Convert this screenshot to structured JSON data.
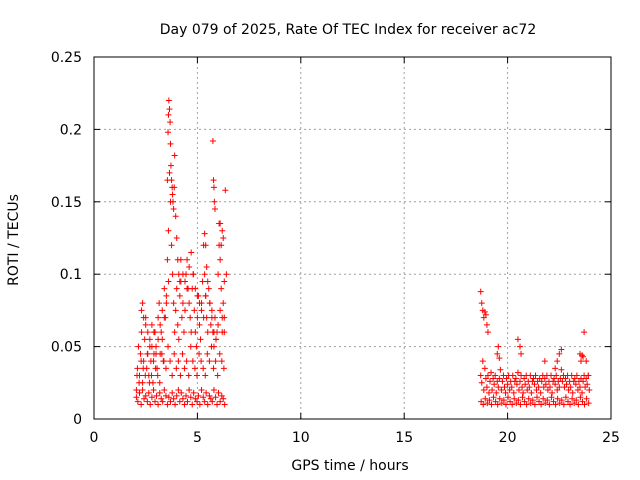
{
  "chart_data": {
    "type": "scatter",
    "title": "Day 079 of 2025, Rate Of TEC Index for receiver ac72",
    "xlabel": "GPS time / hours",
    "ylabel": "ROTI / TECUs",
    "xlim": [
      0,
      25
    ],
    "ylim": [
      0,
      0.25
    ],
    "xticks": [
      0,
      5,
      10,
      15,
      20,
      25
    ],
    "xtick_labels": [
      "0",
      "5",
      "10",
      "15",
      "20",
      "25"
    ],
    "yticks": [
      0,
      0.05,
      0.1,
      0.15,
      0.2,
      0.25
    ],
    "ytick_labels": [
      "0",
      "0.05",
      "0.1",
      "0.15",
      "0.2",
      "0.25"
    ],
    "grid": true,
    "marker": "plus",
    "color": "#ff0000",
    "series": [
      {
        "x": [
          2.05,
          2.1,
          2.15,
          2.2,
          2.25,
          2.3,
          2.35,
          2.4,
          2.45,
          2.5,
          2.55,
          2.6,
          2.65,
          2.7,
          2.75,
          2.8,
          2.85,
          2.9,
          2.95,
          3.0,
          3.05,
          3.1,
          3.15,
          3.2,
          3.25,
          3.3,
          3.35,
          3.4,
          3.45,
          3.5,
          3.55,
          3.6,
          3.65,
          3.7,
          3.75,
          3.8,
          3.85,
          3.9,
          3.95,
          4.0,
          4.05,
          4.1,
          4.15,
          4.2,
          4.25,
          4.3,
          4.35,
          4.4,
          4.45,
          4.5,
          4.55,
          4.6,
          4.65,
          4.7,
          4.75,
          4.8,
          4.85,
          4.9,
          4.95,
          5.0,
          5.05,
          5.1,
          5.15,
          5.2,
          5.25,
          5.3,
          5.35,
          5.4,
          5.45,
          5.5,
          5.55,
          5.6,
          5.65,
          5.7,
          5.75,
          5.8,
          5.85,
          5.9,
          5.95,
          6.0,
          6.05,
          6.1,
          6.15,
          6.2,
          6.25,
          6.3,
          2.05,
          2.12,
          2.2,
          2.28,
          2.35,
          2.42,
          2.5,
          2.58,
          2.65,
          2.72,
          2.8,
          2.88,
          2.95,
          3.02,
          3.1,
          3.18,
          3.25,
          3.32,
          3.4,
          3.48,
          3.55,
          3.62,
          3.7,
          3.78,
          3.85,
          3.92,
          4.0,
          4.08,
          4.15,
          4.22,
          4.3,
          4.38,
          4.45,
          4.52,
          4.6,
          4.68,
          4.75,
          4.82,
          4.9,
          4.98,
          5.05,
          5.12,
          5.2,
          5.28,
          5.35,
          5.42,
          5.5,
          5.58,
          5.65,
          5.72,
          5.8,
          5.88,
          5.95,
          6.02,
          6.1,
          6.18,
          6.25,
          6.32,
          2.08,
          2.18,
          2.28,
          2.38,
          2.48,
          2.58,
          2.68,
          2.78,
          2.88,
          2.98,
          3.08,
          3.18,
          3.28,
          3.38,
          3.48,
          3.58,
          3.68,
          3.78,
          3.88,
          3.98,
          4.08,
          4.18,
          4.28,
          4.38,
          4.48,
          4.58,
          4.68,
          4.78,
          4.88,
          4.98,
          5.08,
          5.18,
          5.28,
          5.38,
          5.48,
          5.58,
          5.68,
          5.78,
          5.88,
          5.98,
          6.08,
          6.18,
          6.28,
          3.55,
          3.58,
          3.6,
          3.62,
          3.65,
          3.68,
          3.7,
          3.72,
          3.75,
          3.78,
          3.8,
          3.82,
          3.85,
          3.88,
          3.9,
          3.95,
          4.0,
          4.05,
          4.1,
          4.15,
          2.3,
          2.35,
          2.4,
          2.5,
          2.6,
          2.7,
          2.8,
          2.9,
          3.0,
          3.1,
          3.2,
          3.3,
          3.4,
          3.5,
          3.6,
          4.2,
          4.3,
          4.4,
          4.5,
          4.6,
          4.7,
          4.8,
          4.9,
          5.0,
          5.1,
          5.2,
          5.3,
          5.4,
          5.5,
          5.6,
          5.7,
          5.8,
          5.9,
          6.0,
          6.1,
          6.2,
          6.3,
          5.75,
          5.78,
          5.8,
          5.82,
          5.85,
          6.4,
          6.35,
          6.3,
          6.25,
          6.2,
          5.35,
          5.4,
          5.45,
          6.15,
          6.1,
          6.05
        ],
        "y": [
          0.02,
          0.035,
          0.05,
          0.03,
          0.045,
          0.06,
          0.025,
          0.04,
          0.055,
          0.07,
          0.035,
          0.045,
          0.03,
          0.05,
          0.04,
          0.065,
          0.025,
          0.045,
          0.06,
          0.05,
          0.035,
          0.07,
          0.08,
          0.045,
          0.06,
          0.055,
          0.04,
          0.09,
          0.07,
          0.085,
          0.11,
          0.13,
          0.17,
          0.15,
          0.12,
          0.1,
          0.08,
          0.06,
          0.075,
          0.09,
          0.065,
          0.055,
          0.085,
          0.095,
          0.07,
          0.08,
          0.06,
          0.075,
          0.1,
          0.11,
          0.09,
          0.08,
          0.07,
          0.06,
          0.09,
          0.1,
          0.075,
          0.06,
          0.05,
          0.07,
          0.085,
          0.065,
          0.055,
          0.08,
          0.095,
          0.12,
          0.1,
          0.085,
          0.07,
          0.06,
          0.09,
          0.08,
          0.065,
          0.075,
          0.06,
          0.05,
          0.07,
          0.055,
          0.06,
          0.1,
          0.12,
          0.135,
          0.09,
          0.07,
          0.08,
          0.06,
          0.015,
          0.012,
          0.018,
          0.01,
          0.02,
          0.014,
          0.016,
          0.012,
          0.018,
          0.01,
          0.015,
          0.02,
          0.012,
          0.016,
          0.01,
          0.018,
          0.014,
          0.012,
          0.02,
          0.016,
          0.01,
          0.015,
          0.012,
          0.018,
          0.014,
          0.01,
          0.016,
          0.02,
          0.012,
          0.018,
          0.014,
          0.01,
          0.016,
          0.012,
          0.02,
          0.015,
          0.01,
          0.018,
          0.014,
          0.012,
          0.016,
          0.01,
          0.02,
          0.015,
          0.012,
          0.018,
          0.01,
          0.016,
          0.014,
          0.012,
          0.02,
          0.015,
          0.01,
          0.018,
          0.012,
          0.016,
          0.014,
          0.01,
          0.03,
          0.025,
          0.04,
          0.035,
          0.03,
          0.045,
          0.025,
          0.03,
          0.04,
          0.035,
          0.03,
          0.025,
          0.045,
          0.04,
          0.035,
          0.05,
          0.04,
          0.03,
          0.045,
          0.035,
          0.04,
          0.03,
          0.045,
          0.035,
          0.04,
          0.03,
          0.05,
          0.04,
          0.035,
          0.03,
          0.045,
          0.04,
          0.035,
          0.03,
          0.045,
          0.04,
          0.05,
          0.035,
          0.04,
          0.03,
          0.045,
          0.04,
          0.035,
          0.165,
          0.198,
          0.21,
          0.22,
          0.214,
          0.205,
          0.19,
          0.175,
          0.165,
          0.16,
          0.155,
          0.15,
          0.145,
          0.16,
          0.182,
          0.14,
          0.125,
          0.11,
          0.1,
          0.095,
          0.075,
          0.08,
          0.07,
          0.065,
          0.06,
          0.055,
          0.05,
          0.06,
          0.045,
          0.055,
          0.065,
          0.075,
          0.07,
          0.08,
          0.095,
          0.11,
          0.1,
          0.095,
          0.09,
          0.105,
          0.115,
          0.1,
          0.09,
          0.085,
          0.08,
          0.075,
          0.07,
          0.085,
          0.095,
          0.08,
          0.07,
          0.06,
          0.055,
          0.065,
          0.075,
          0.06,
          0.07,
          0.192,
          0.165,
          0.16,
          0.15,
          0.145,
          0.1,
          0.158,
          0.095,
          0.125,
          0.13,
          0.128,
          0.12,
          0.105,
          0.12,
          0.11,
          0.135
        ]
      },
      {
        "x": [
          18.7,
          18.75,
          18.8,
          18.85,
          18.9,
          18.95,
          19.0,
          19.05,
          19.1,
          19.15,
          19.2,
          19.25,
          19.3,
          19.35,
          19.4,
          19.45,
          19.5,
          19.55,
          19.6,
          19.65,
          19.7,
          19.75,
          19.8,
          19.85,
          19.9,
          19.95,
          20.0,
          20.05,
          20.1,
          20.15,
          20.2,
          20.25,
          20.3,
          20.35,
          20.4,
          20.45,
          20.5,
          20.55,
          20.6,
          20.65,
          20.7,
          20.75,
          20.8,
          20.85,
          20.9,
          20.95,
          21.0,
          21.05,
          21.1,
          21.15,
          21.2,
          21.25,
          21.3,
          21.35,
          21.4,
          21.45,
          21.5,
          21.55,
          21.6,
          21.65,
          21.7,
          21.75,
          21.8,
          21.85,
          21.9,
          21.95,
          22.0,
          22.05,
          22.1,
          22.15,
          22.2,
          22.25,
          22.3,
          22.35,
          22.4,
          22.45,
          22.5,
          22.55,
          22.6,
          22.65,
          22.7,
          22.75,
          22.8,
          22.85,
          22.9,
          22.95,
          23.0,
          23.05,
          23.1,
          23.15,
          23.2,
          23.25,
          23.3,
          23.35,
          23.4,
          23.45,
          23.5,
          23.55,
          23.6,
          23.65,
          23.7,
          23.75,
          23.8,
          23.85,
          23.9,
          23.95,
          18.72,
          18.82,
          18.92,
          19.02,
          19.12,
          19.22,
          19.32,
          19.42,
          19.52,
          19.62,
          19.72,
          19.82,
          19.92,
          20.02,
          20.12,
          20.22,
          20.32,
          20.42,
          20.52,
          20.62,
          20.72,
          20.82,
          20.92,
          21.02,
          21.12,
          21.22,
          21.32,
          21.42,
          21.52,
          21.62,
          21.72,
          21.82,
          21.92,
          22.02,
          22.12,
          22.22,
          22.32,
          22.42,
          22.52,
          22.62,
          22.72,
          22.82,
          22.92,
          23.02,
          23.12,
          23.22,
          23.32,
          23.42,
          23.52,
          23.62,
          23.72,
          23.82,
          23.92,
          18.7,
          18.75,
          18.8,
          18.85,
          18.9,
          18.95,
          19.0,
          19.05,
          19.5,
          19.55,
          19.6,
          20.5,
          20.6,
          20.65,
          21.8,
          22.3,
          22.4,
          22.5,
          22.6,
          23.5,
          23.55,
          23.6,
          23.65,
          23.7,
          23.8,
          23.9
        ],
        "y": [
          0.03,
          0.025,
          0.04,
          0.02,
          0.035,
          0.028,
          0.022,
          0.03,
          0.018,
          0.026,
          0.032,
          0.02,
          0.028,
          0.024,
          0.03,
          0.018,
          0.026,
          0.022,
          0.028,
          0.034,
          0.02,
          0.026,
          0.03,
          0.022,
          0.018,
          0.028,
          0.024,
          0.03,
          0.02,
          0.026,
          0.022,
          0.03,
          0.018,
          0.026,
          0.028,
          0.024,
          0.032,
          0.02,
          0.026,
          0.03,
          0.022,
          0.018,
          0.028,
          0.024,
          0.03,
          0.02,
          0.026,
          0.022,
          0.03,
          0.018,
          0.026,
          0.028,
          0.024,
          0.03,
          0.02,
          0.026,
          0.022,
          0.028,
          0.018,
          0.026,
          0.03,
          0.022,
          0.028,
          0.024,
          0.03,
          0.02,
          0.026,
          0.022,
          0.03,
          0.018,
          0.026,
          0.028,
          0.024,
          0.03,
          0.02,
          0.026,
          0.022,
          0.028,
          0.034,
          0.026,
          0.03,
          0.022,
          0.028,
          0.024,
          0.03,
          0.02,
          0.026,
          0.022,
          0.03,
          0.018,
          0.026,
          0.028,
          0.024,
          0.03,
          0.02,
          0.026,
          0.022,
          0.028,
          0.018,
          0.026,
          0.03,
          0.022,
          0.028,
          0.024,
          0.03,
          0.02,
          0.012,
          0.01,
          0.014,
          0.011,
          0.013,
          0.01,
          0.015,
          0.012,
          0.01,
          0.014,
          0.011,
          0.013,
          0.01,
          0.015,
          0.012,
          0.01,
          0.014,
          0.011,
          0.013,
          0.01,
          0.015,
          0.012,
          0.01,
          0.014,
          0.011,
          0.013,
          0.01,
          0.015,
          0.012,
          0.01,
          0.014,
          0.011,
          0.013,
          0.01,
          0.015,
          0.012,
          0.01,
          0.014,
          0.011,
          0.013,
          0.01,
          0.015,
          0.012,
          0.01,
          0.014,
          0.011,
          0.013,
          0.01,
          0.015,
          0.012,
          0.01,
          0.014,
          0.011,
          0.088,
          0.08,
          0.075,
          0.07,
          0.074,
          0.072,
          0.065,
          0.06,
          0.045,
          0.05,
          0.042,
          0.055,
          0.05,
          0.045,
          0.04,
          0.035,
          0.04,
          0.045,
          0.048,
          0.045,
          0.04,
          0.044,
          0.043,
          0.06,
          0.04,
          0.03
        ]
      }
    ]
  }
}
